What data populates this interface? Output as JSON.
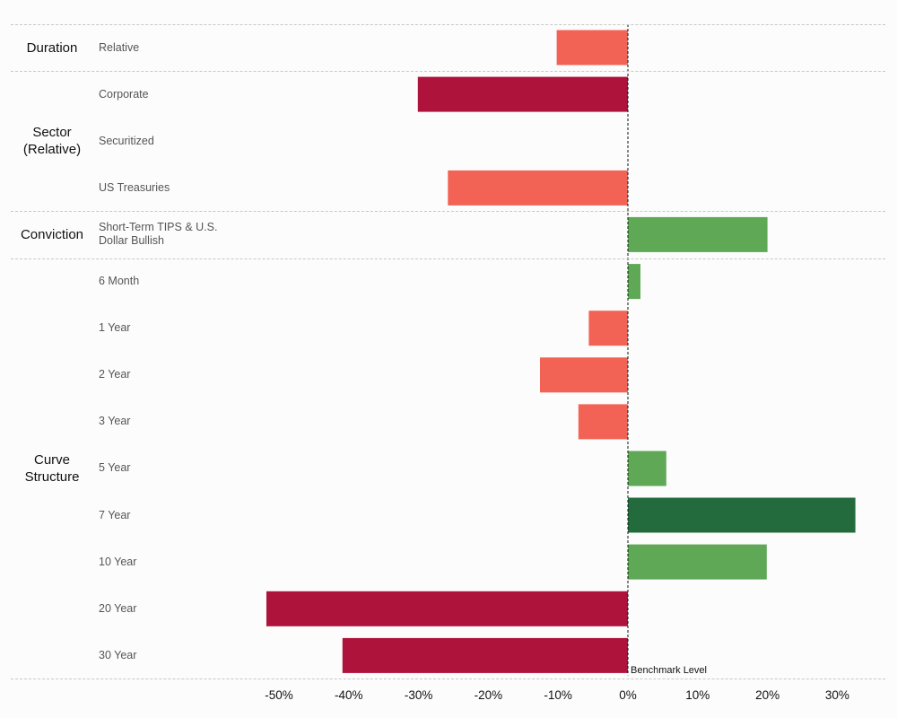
{
  "chart_data": {
    "type": "bar",
    "orientation": "horizontal",
    "groups": [
      {
        "label": "Duration",
        "rows": [
          {
            "label": "Relative",
            "value": -10.2,
            "color": "#f26356"
          }
        ]
      },
      {
        "label": "Sector\n(Relative)",
        "rows": [
          {
            "label": "Corporate",
            "value": -30.1,
            "color": "#ad133b"
          },
          {
            "label": "Securitized",
            "value": 0,
            "color": "#f26356"
          },
          {
            "label": "US Treasuries",
            "value": -25.8,
            "color": "#f26356"
          }
        ]
      },
      {
        "label": "Conviction",
        "rows": [
          {
            "label": "Short-Term TIPS & U.S.\nDollar Bullish",
            "value": 20.0,
            "color": "#5ea856"
          }
        ]
      },
      {
        "label": "Curve\nStructure",
        "rows": [
          {
            "label": "6 Month",
            "value": 1.8,
            "color": "#5ea856"
          },
          {
            "label": "1 Year",
            "value": -5.6,
            "color": "#f26356"
          },
          {
            "label": "2 Year",
            "value": -12.6,
            "color": "#f26356"
          },
          {
            "label": "3 Year",
            "value": -7.1,
            "color": "#f26356"
          },
          {
            "label": "5 Year",
            "value": 5.5,
            "color": "#5ea856"
          },
          {
            "label": "7 Year",
            "value": 32.6,
            "color": "#236b3d"
          },
          {
            "label": "10 Year",
            "value": 19.9,
            "color": "#5ea856"
          },
          {
            "label": "20 Year",
            "value": -51.8,
            "color": "#ad133b"
          },
          {
            "label": "30 Year",
            "value": -40.9,
            "color": "#ad133b"
          }
        ]
      }
    ],
    "x_ticks": [
      -50,
      -40,
      -30,
      -20,
      -10,
      0,
      10,
      20,
      30
    ],
    "x_tick_labels": [
      "-50%",
      "-40%",
      "-30%",
      "-20%",
      "-10%",
      "0%",
      "10%",
      "20%",
      "30%"
    ],
    "xlim": [
      -50,
      30
    ],
    "benchmark_label": "Benchmark Level",
    "grid": false
  }
}
